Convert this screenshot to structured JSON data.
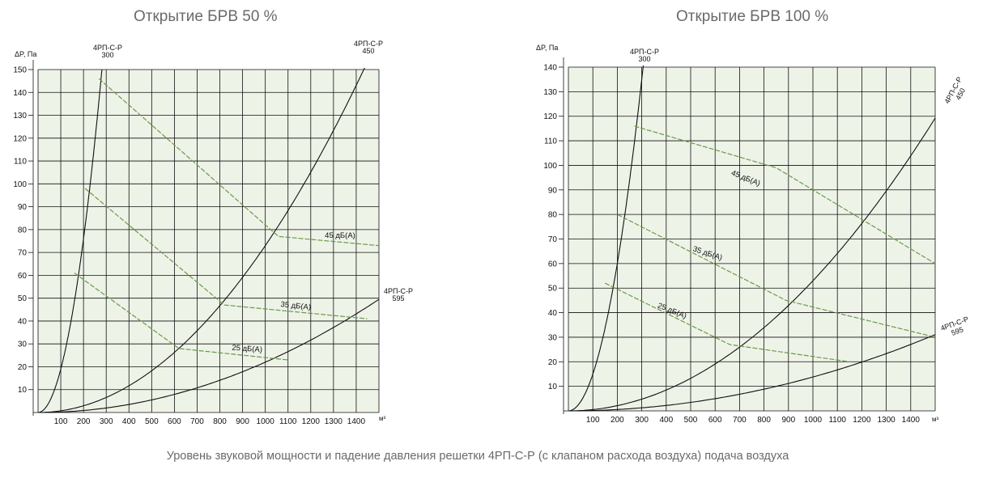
{
  "caption": "Уровень звуковой мощности и падение давления решетки 4РП-С-Р (с клапаном расхода воздуха) подача воздуха",
  "colors": {
    "plot_bg": "#eef3e8",
    "grid": "#111111",
    "duct_curves": "#111111",
    "noise_lines": "#6a9a4a"
  },
  "chart_data": [
    {
      "type": "line",
      "title": "Открытие БРВ 50 %",
      "ylabel": "ΔP, Па",
      "xlabel": "м³",
      "xlim": [
        0,
        1500
      ],
      "ylim": [
        0,
        150
      ],
      "x_ticks": [
        100,
        200,
        300,
        400,
        500,
        600,
        700,
        800,
        900,
        1000,
        1100,
        1200,
        1300,
        1400
      ],
      "x_tick_labels": [
        "100",
        "200",
        "300",
        "400",
        "500",
        "600",
        "700",
        "800",
        "900",
        "1000",
        "1100",
        "1200",
        "1300",
        "1400"
      ],
      "y_ticks": [
        10,
        20,
        30,
        40,
        50,
        60,
        70,
        80,
        90,
        100,
        110,
        120,
        130,
        140,
        150
      ],
      "y_tick_labels": [
        "10",
        "20",
        "30",
        "40",
        "50",
        "60",
        "70",
        "80",
        "90",
        "100",
        "110",
        "120",
        "130",
        "140",
        "150"
      ],
      "grid": true,
      "series": [
        {
          "name": "4РП-С-Р 300",
          "label_lines": [
            "4РП-С-Р",
            "300"
          ],
          "kind": "curve",
          "k": 0.0019,
          "n": 2.0,
          "x_from": 0,
          "x_end": 281
        },
        {
          "name": "4РП-С-Р 450",
          "label_lines": [
            "4РП-С-Р",
            "450"
          ],
          "kind": "curve",
          "k": 7.3e-05,
          "n": 2.0,
          "x_from": 0,
          "x_end": 1438
        },
        {
          "name": "4РП-С-Р 595",
          "label_lines": [
            "4РП-С-Р",
            "595"
          ],
          "kind": "curve",
          "k": 2.2e-05,
          "n": 2.0,
          "x_from": 0,
          "x_end": 1500
        },
        {
          "name": "45 дБ(А)",
          "kind": "noise",
          "x": [
            268,
            1058,
            1500
          ],
          "y": [
            146,
            77,
            73
          ]
        },
        {
          "name": "35 дБ(А)",
          "kind": "noise",
          "x": [
            207,
            820,
            1448
          ],
          "y": [
            98,
            47,
            41
          ]
        },
        {
          "name": "25 дБ(А)",
          "kind": "noise",
          "x": [
            160,
            620,
            1100
          ],
          "y": [
            61,
            28,
            23
          ]
        }
      ]
    },
    {
      "type": "line",
      "title": "Открытие БРВ 100 %",
      "ylabel": "ΔP, Па",
      "xlabel": "м³",
      "xlim": [
        0,
        1500
      ],
      "ylim": [
        0,
        140
      ],
      "x_ticks": [
        100,
        200,
        300,
        400,
        500,
        600,
        700,
        800,
        900,
        1000,
        1100,
        1200,
        1300,
        1400
      ],
      "x_tick_labels": [
        "100",
        "200",
        "300",
        "400",
        "500",
        "600",
        "700",
        "800",
        "900",
        "1000",
        "1100",
        "1200",
        "1300",
        "1400"
      ],
      "y_ticks": [
        10,
        20,
        30,
        40,
        50,
        60,
        70,
        80,
        90,
        100,
        110,
        120,
        130,
        140
      ],
      "y_tick_labels": [
        "10",
        "20",
        "30",
        "40",
        "50",
        "60",
        "70",
        "80",
        "90",
        "100",
        "110",
        "120",
        "130",
        "140"
      ],
      "grid": true,
      "series": [
        {
          "name": "4РП-С-Р 300",
          "label_lines": [
            "4РП-С-Р",
            "300"
          ],
          "kind": "curve",
          "k": 0.0015,
          "n": 2.0,
          "x_from": 0,
          "x_end": 312
        },
        {
          "name": "4РП-С-Р 450",
          "label_lines": [
            "4РП-С-Р",
            "450"
          ],
          "kind": "curve",
          "k": 5.3e-05,
          "n": 2.0,
          "x_from": 0,
          "x_end": 1500
        },
        {
          "name": "4РП-С-Р 595",
          "label_lines": [
            "4РП-С-Р",
            "595"
          ],
          "kind": "curve",
          "k": 1.38e-05,
          "n": 2.0,
          "x_from": 0,
          "x_end": 1500
        },
        {
          "name": "45 дБ(А)",
          "kind": "noise",
          "x": [
            270,
            850,
            1500
          ],
          "y": [
            116,
            99,
            60
          ]
        },
        {
          "name": "35 дБ(А)",
          "kind": "noise",
          "x": [
            200,
            890,
            1500
          ],
          "y": [
            80,
            45,
            30
          ]
        },
        {
          "name": "25 дБ(А)",
          "kind": "noise",
          "x": [
            150,
            660,
            1150
          ],
          "y": [
            52,
            27,
            20
          ]
        }
      ]
    }
  ]
}
